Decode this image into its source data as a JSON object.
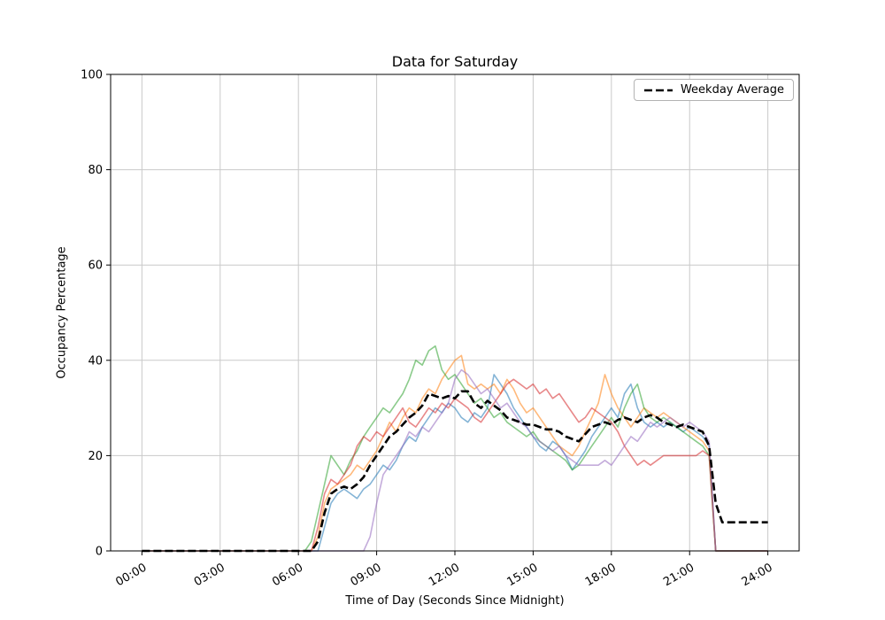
{
  "figure": {
    "background": "#ffffff"
  },
  "legend": {
    "label": "Weekday Average",
    "line_color": "#000000",
    "line_style": "dashed"
  },
  "chart_data": {
    "type": "line",
    "title": "Data for Saturday",
    "xlabel": "Time of Day (Seconds Since Midnight)",
    "ylabel": "Occupancy Percentage",
    "grid": true,
    "grid_color": "#c9c9c9",
    "xlim": [
      -1.2,
      25.2
    ],
    "ylim": [
      0,
      100
    ],
    "x_ticks": [
      0,
      3,
      6,
      9,
      12,
      15,
      18,
      21,
      24
    ],
    "x_ticklabels": [
      "00:00",
      "03:00",
      "06:00",
      "09:00",
      "12:00",
      "15:00",
      "18:00",
      "21:00",
      "24:00"
    ],
    "y_ticks": [
      0,
      20,
      40,
      60,
      80,
      100
    ],
    "legend_position": "upper right",
    "x_start": 0,
    "x_step": 0.25,
    "x_unit": "hours",
    "series": [
      {
        "name": "saturday-sample-1",
        "color": "#1f77b4",
        "opacity": 0.55,
        "width": 1.6,
        "dash": "",
        "values": [
          0,
          0,
          0,
          0,
          0,
          0,
          0,
          0,
          0,
          0,
          0,
          0,
          0,
          0,
          0,
          0,
          0,
          0,
          0,
          0,
          0,
          0,
          0,
          0,
          0,
          0,
          0,
          0,
          5,
          10,
          12,
          13,
          12,
          11,
          13,
          14,
          16,
          18,
          17,
          19,
          22,
          24,
          23,
          26,
          28,
          30,
          29,
          31,
          30,
          28,
          27,
          29,
          28,
          30,
          37,
          35,
          33,
          30,
          28,
          26,
          24,
          22,
          21,
          23,
          22,
          20,
          17,
          19,
          21,
          24,
          26,
          28,
          30,
          28,
          33,
          35,
          30,
          27,
          26,
          27,
          26,
          27,
          26,
          25,
          26,
          25,
          24,
          22,
          0,
          0,
          0,
          0,
          0,
          0,
          0,
          0,
          0
        ]
      },
      {
        "name": "saturday-sample-2",
        "color": "#ff7f0e",
        "opacity": 0.55,
        "width": 1.6,
        "dash": "",
        "values": [
          0,
          0,
          0,
          0,
          0,
          0,
          0,
          0,
          0,
          0,
          0,
          0,
          0,
          0,
          0,
          0,
          0,
          0,
          0,
          0,
          0,
          0,
          0,
          0,
          0,
          0,
          0,
          3,
          10,
          13,
          14,
          15,
          16,
          18,
          17,
          19,
          21,
          24,
          27,
          25,
          28,
          30,
          29,
          32,
          34,
          33,
          36,
          38,
          40,
          41,
          35,
          34,
          35,
          34,
          35,
          33,
          36,
          34,
          31,
          29,
          30,
          28,
          26,
          24,
          22,
          21,
          20,
          22,
          25,
          28,
          31,
          37,
          33,
          30,
          28,
          26,
          28,
          30,
          29,
          28,
          29,
          28,
          27,
          26,
          25,
          24,
          23,
          21,
          0,
          0,
          0,
          0,
          0,
          0,
          0,
          0,
          0
        ]
      },
      {
        "name": "saturday-sample-3",
        "color": "#2ca02c",
        "opacity": 0.55,
        "width": 1.6,
        "dash": "",
        "values": [
          0,
          0,
          0,
          0,
          0,
          0,
          0,
          0,
          0,
          0,
          0,
          0,
          0,
          0,
          0,
          0,
          0,
          0,
          0,
          0,
          0,
          0,
          0,
          0,
          0,
          0,
          2,
          8,
          14,
          20,
          18,
          16,
          19,
          21,
          24,
          26,
          28,
          30,
          29,
          31,
          33,
          36,
          40,
          39,
          42,
          43,
          38,
          36,
          37,
          35,
          33,
          31,
          32,
          30,
          28,
          29,
          27,
          26,
          25,
          24,
          25,
          23,
          22,
          21,
          20,
          19,
          17,
          18,
          20,
          22,
          24,
          26,
          28,
          26,
          30,
          33,
          35,
          30,
          28,
          27,
          28,
          27,
          26,
          25,
          24,
          23,
          22,
          20,
          0,
          0,
          0,
          0,
          0,
          0,
          0,
          0,
          0
        ]
      },
      {
        "name": "saturday-sample-4",
        "color": "#d62728",
        "opacity": 0.55,
        "width": 1.6,
        "dash": "",
        "values": [
          0,
          0,
          0,
          0,
          0,
          0,
          0,
          0,
          0,
          0,
          0,
          0,
          0,
          0,
          0,
          0,
          0,
          0,
          0,
          0,
          0,
          0,
          0,
          0,
          0,
          0,
          0,
          5,
          12,
          15,
          14,
          16,
          18,
          22,
          24,
          23,
          25,
          24,
          26,
          28,
          30,
          27,
          26,
          28,
          30,
          29,
          31,
          30,
          32,
          31,
          30,
          28,
          27,
          29,
          31,
          33,
          35,
          36,
          35,
          34,
          35,
          33,
          34,
          32,
          33,
          31,
          29,
          27,
          28,
          30,
          29,
          28,
          27,
          25,
          22,
          20,
          18,
          19,
          18,
          19,
          20,
          20,
          20,
          20,
          20,
          20,
          21,
          20,
          0,
          0,
          0,
          0,
          0,
          0,
          0,
          0,
          0
        ]
      },
      {
        "name": "saturday-sample-5",
        "color": "#9467bd",
        "opacity": 0.55,
        "width": 1.6,
        "dash": "",
        "values": [
          0,
          0,
          0,
          0,
          0,
          0,
          0,
          0,
          0,
          0,
          0,
          0,
          0,
          0,
          0,
          0,
          0,
          0,
          0,
          0,
          0,
          0,
          0,
          0,
          0,
          0,
          0,
          0,
          0,
          0,
          0,
          0,
          0,
          0,
          0,
          3,
          10,
          16,
          18,
          20,
          22,
          25,
          24,
          26,
          25,
          27,
          29,
          31,
          36,
          38,
          37,
          35,
          33,
          34,
          32,
          30,
          31,
          29,
          27,
          26,
          24,
          23,
          22,
          21,
          22,
          20,
          19,
          18,
          18,
          18,
          18,
          19,
          18,
          20,
          22,
          24,
          23,
          25,
          27,
          26,
          27,
          28,
          27,
          26,
          27,
          26,
          25,
          23,
          0,
          0,
          0,
          0,
          0,
          0,
          0,
          0,
          0
        ]
      },
      {
        "name": "weekday-average",
        "label": "Weekday Average",
        "color": "#000000",
        "opacity": 1,
        "width": 2.6,
        "dash": "9 4",
        "values": [
          0,
          0,
          0,
          0,
          0,
          0,
          0,
          0,
          0,
          0,
          0,
          0,
          0,
          0,
          0,
          0,
          0,
          0,
          0,
          0,
          0,
          0,
          0,
          0,
          0,
          0,
          0,
          2,
          8,
          12,
          13,
          13.5,
          13,
          14,
          15.5,
          18,
          20,
          22,
          24,
          25,
          26.5,
          28,
          29,
          30.5,
          33,
          32.5,
          32,
          32.5,
          32,
          33.5,
          33.5,
          31,
          30,
          31.5,
          30.5,
          29.5,
          28,
          27.5,
          27,
          26.5,
          26.5,
          26,
          25.5,
          25.5,
          25,
          24,
          23.5,
          23,
          24.5,
          26,
          26.5,
          27,
          26.5,
          27.5,
          28,
          27.5,
          27,
          28,
          28.5,
          28,
          27,
          26.5,
          26,
          26.5,
          26,
          25.5,
          25,
          22,
          10,
          6,
          6,
          6,
          6,
          6,
          6,
          6,
          6
        ]
      }
    ]
  }
}
